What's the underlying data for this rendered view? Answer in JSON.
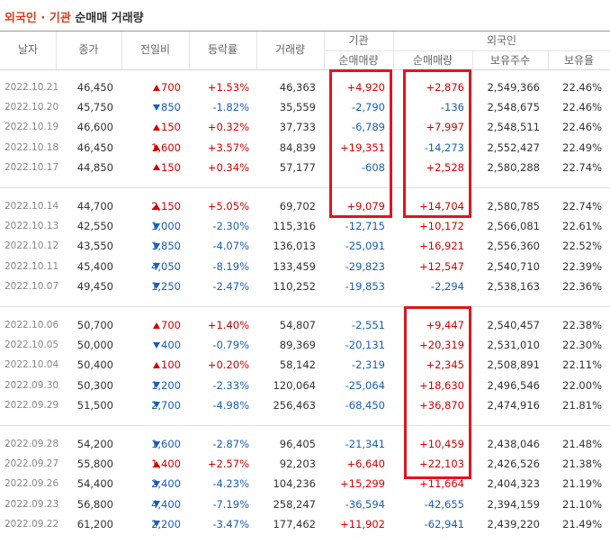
{
  "title": {
    "highlight": "외국인 · 기관",
    "text": "순매매 거래량"
  },
  "headers": {
    "date": "날자",
    "close": "종가",
    "change": "전일비",
    "rate": "등락률",
    "volume": "거래량",
    "inst": "기관",
    "inst_net": "순매매량",
    "foreign": "외국인",
    "foreign_net": "순매매량",
    "holdings": "보유주수",
    "ratio": "보유율"
  },
  "groups": [
    [
      [
        "2022.10.21",
        "46,450",
        "700",
        "+1.53%",
        "46,363",
        "+4,920",
        "+2,876",
        "2,549,366",
        "22.46%"
      ],
      [
        "2022.10.20",
        "45,750",
        "850",
        "-1.82%",
        "35,559",
        "-2,790",
        "-136",
        "2,548,675",
        "22.46%"
      ],
      [
        "2022.10.19",
        "46,600",
        "150",
        "+0.32%",
        "37,733",
        "-6,789",
        "+7,997",
        "2,548,511",
        "22.46%"
      ],
      [
        "2022.10.18",
        "46,450",
        "1,600",
        "+3.57%",
        "84,839",
        "+19,351",
        "-14,273",
        "2,552,427",
        "22.49%"
      ],
      [
        "2022.10.17",
        "44,850",
        "150",
        "+0.34%",
        "57,177",
        "-608",
        "+2,528",
        "2,580,288",
        "22.74%"
      ]
    ],
    [
      [
        "2022.10.14",
        "44,700",
        "2,150",
        "+5.05%",
        "69,702",
        "+9,079",
        "+14,704",
        "2,580,785",
        "22.74%"
      ],
      [
        "2022.10.13",
        "42,550",
        "1,000",
        "-2.30%",
        "115,316",
        "-12,715",
        "+10,172",
        "2,566,081",
        "22.61%"
      ],
      [
        "2022.10.12",
        "43,550",
        "1,850",
        "-4.07%",
        "136,013",
        "-25,091",
        "+16,921",
        "2,556,360",
        "22.52%"
      ],
      [
        "2022.10.11",
        "45,400",
        "4,050",
        "-8.19%",
        "133,459",
        "-29,823",
        "+12,547",
        "2,540,710",
        "22.39%"
      ],
      [
        "2022.10.07",
        "49,450",
        "1,250",
        "-2.47%",
        "110,252",
        "-19,853",
        "-2,294",
        "2,538,163",
        "22.36%"
      ]
    ],
    [
      [
        "2022.10.06",
        "50,700",
        "700",
        "+1.40%",
        "54,807",
        "-2,551",
        "+9,447",
        "2,540,457",
        "22.38%"
      ],
      [
        "2022.10.05",
        "50,000",
        "400",
        "-0.79%",
        "89,369",
        "-20,131",
        "+20,319",
        "2,531,010",
        "22.30%"
      ],
      [
        "2022.10.04",
        "50,400",
        "100",
        "+0.20%",
        "58,142",
        "-2,319",
        "+2,345",
        "2,508,891",
        "22.11%"
      ],
      [
        "2022.09.30",
        "50,300",
        "1,200",
        "-2.33%",
        "120,064",
        "-25,064",
        "+18,630",
        "2,496,546",
        "22.00%"
      ],
      [
        "2022.09.29",
        "51,500",
        "2,700",
        "-4.98%",
        "256,463",
        "-68,450",
        "+36,870",
        "2,474,916",
        "21.81%"
      ]
    ],
    [
      [
        "2022.09.28",
        "54,200",
        "1,600",
        "-2.87%",
        "96,405",
        "-21,341",
        "+10,459",
        "2,438,046",
        "21.48%"
      ],
      [
        "2022.09.27",
        "55,800",
        "1,400",
        "+2.57%",
        "92,203",
        "+6,640",
        "+22,103",
        "2,426,526",
        "21.38%"
      ],
      [
        "2022.09.26",
        "54,400",
        "2,400",
        "-4.23%",
        "104,236",
        "+15,299",
        "+11,664",
        "2,404,323",
        "21.19%"
      ],
      [
        "2022.09.23",
        "56,800",
        "4,400",
        "-7.19%",
        "258,247",
        "-36,594",
        "-42,655",
        "2,394,159",
        "21.10%"
      ],
      [
        "2022.09.22",
        "61,200",
        "2,200",
        "-3.47%",
        "177,462",
        "+11,902",
        "-62,941",
        "2,439,220",
        "21.49%"
      ]
    ]
  ]
}
